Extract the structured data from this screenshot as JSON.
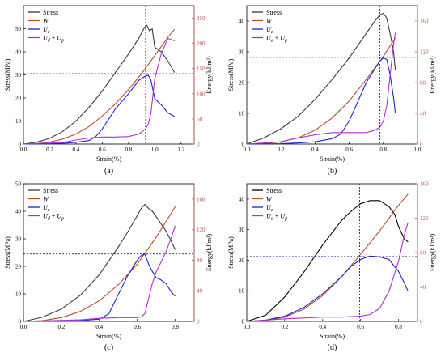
{
  "chart_data": [
    {
      "type": "line",
      "caption": "(a)",
      "xlabel": "Strain(%)",
      "ylabel": "Stress(MPa)",
      "ylabel_right": "Energy(kJ/m³)",
      "xlim": [
        0,
        1.3
      ],
      "ylim": [
        0,
        60
      ],
      "ylim_right": [
        0,
        275
      ],
      "xticks": [
        0.0,
        0.2,
        0.4,
        0.6,
        0.8,
        1.0,
        1.2
      ],
      "yticks": [
        0,
        10,
        20,
        30,
        40,
        50
      ],
      "yticks_right": [
        0,
        50,
        100,
        150,
        200,
        250
      ],
      "tick_decimals": 1,
      "crosshair": {
        "x": 0.93,
        "y": 30.5
      },
      "legend": {
        "position": "top-left"
      },
      "series": [
        {
          "name": "Stress",
          "axis": "left",
          "color": "#3a3a3a",
          "x": [
            0,
            0.1,
            0.2,
            0.3,
            0.4,
            0.5,
            0.6,
            0.7,
            0.8,
            0.88,
            0.92,
            0.94,
            0.96,
            0.98,
            1.0,
            1.05,
            1.1,
            1.15
          ],
          "y": [
            0,
            0.8,
            2.5,
            5.5,
            10,
            16,
            23,
            31,
            39,
            46,
            50.5,
            51.5,
            49,
            50,
            42,
            40,
            36,
            31
          ]
        },
        {
          "name": "W",
          "axis": "right",
          "color": "#b5502c",
          "x": [
            0,
            0.1,
            0.2,
            0.3,
            0.4,
            0.5,
            0.6,
            0.7,
            0.8,
            0.9,
            1.0,
            1.1,
            1.15
          ],
          "y": [
            0,
            0.6,
            4,
            10,
            20,
            35,
            56,
            80,
            108,
            140,
            176,
            212,
            228
          ]
        },
        {
          "name": "U_e",
          "axis": "right",
          "color": "#2020d0",
          "x": [
            0,
            0.2,
            0.3,
            0.4,
            0.5,
            0.55,
            0.6,
            0.7,
            0.8,
            0.88,
            0.92,
            0.95,
            0.97,
            1.0,
            1.05,
            1.1,
            1.15
          ],
          "y": [
            0,
            0.5,
            1.5,
            3.5,
            7,
            15,
            30,
            70,
            100,
            127,
            134,
            137,
            128,
            90,
            78,
            62,
            55
          ]
        },
        {
          "name": "U_d+U_p",
          "axis": "right",
          "color": "#b030d0",
          "x": [
            0,
            0.3,
            0.4,
            0.5,
            0.6,
            0.7,
            0.8,
            0.88,
            0.93,
            0.95,
            0.97,
            1.0,
            1.05,
            1.1,
            1.15
          ],
          "y": [
            0,
            3,
            8,
            12,
            14,
            14,
            15,
            20,
            30,
            40,
            60,
            130,
            180,
            210,
            205
          ]
        }
      ]
    },
    {
      "type": "line",
      "caption": "(b)",
      "xlabel": "Strain(%)",
      "ylabel": "Stress(MPa)",
      "ylabel_right": "Energy(kJ/m³)",
      "xlim": [
        0,
        1.0
      ],
      "ylim": [
        0,
        45
      ],
      "ylim_right": [
        0,
        180
      ],
      "xticks": [
        0.0,
        0.2,
        0.4,
        0.6,
        0.8,
        1.0
      ],
      "yticks": [
        0,
        10,
        20,
        30,
        40
      ],
      "yticks_right": [
        0,
        40,
        80,
        120,
        160
      ],
      "tick_decimals": 1,
      "crosshair": {
        "x": 0.78,
        "y": 28.2
      },
      "legend": {
        "position": "top-left"
      },
      "series": [
        {
          "name": "Stress",
          "axis": "left",
          "color": "#3a3a3a",
          "x": [
            0,
            0.1,
            0.2,
            0.3,
            0.4,
            0.5,
            0.6,
            0.7,
            0.75,
            0.78,
            0.8,
            0.82,
            0.84,
            0.86,
            0.87
          ],
          "y": [
            0,
            2,
            5,
            9,
            14.5,
            21,
            28,
            36,
            40,
            42,
            42.5,
            41,
            36,
            30,
            24
          ]
        },
        {
          "name": "W",
          "axis": "right",
          "color": "#b5502c",
          "x": [
            0,
            0.1,
            0.2,
            0.3,
            0.4,
            0.5,
            0.6,
            0.7,
            0.8,
            0.87
          ],
          "y": [
            0,
            0.5,
            3,
            8,
            18,
            34,
            56,
            84,
            114,
            138
          ]
        },
        {
          "name": "U_e",
          "axis": "right",
          "color": "#2020d0",
          "x": [
            0,
            0.2,
            0.3,
            0.4,
            0.5,
            0.55,
            0.6,
            0.65,
            0.7,
            0.75,
            0.78,
            0.8,
            0.82,
            0.84,
            0.86,
            0.87
          ],
          "y": [
            0,
            0.5,
            1.5,
            3,
            7,
            13,
            30,
            55,
            80,
            98,
            108,
            112,
            110,
            90,
            60,
            40
          ]
        },
        {
          "name": "U_d+U_p",
          "axis": "right",
          "color": "#b030d0",
          "x": [
            0,
            0.2,
            0.3,
            0.4,
            0.5,
            0.6,
            0.7,
            0.75,
            0.78,
            0.8,
            0.82,
            0.84,
            0.86,
            0.87
          ],
          "y": [
            0,
            3,
            8,
            12,
            15,
            15,
            15,
            18,
            22,
            30,
            50,
            90,
            130,
            145
          ]
        }
      ]
    },
    {
      "type": "line",
      "caption": "(c)",
      "xlabel": "Strain(%)",
      "ylabel": "Stress(MPa)",
      "ylabel_right": "Energy(kJ/m³)",
      "xlim": [
        0,
        0.9
      ],
      "ylim": [
        0,
        50
      ],
      "ylim_right": [
        0,
        180
      ],
      "xticks": [
        0.0,
        0.2,
        0.4,
        0.6,
        0.8
      ],
      "yticks": [
        0,
        10,
        20,
        30,
        40,
        50
      ],
      "yticks_right": [
        0,
        40,
        80,
        120,
        160
      ],
      "tick_decimals": 1,
      "crosshair": {
        "x": 0.625,
        "y": 24.5
      },
      "legend": {
        "position": "top-left"
      },
      "series": [
        {
          "name": "Stress",
          "axis": "left",
          "color": "#3a3a3a",
          "x": [
            0,
            0.1,
            0.2,
            0.3,
            0.4,
            0.5,
            0.55,
            0.6,
            0.62,
            0.64,
            0.66,
            0.68,
            0.7,
            0.72,
            0.75,
            0.78,
            0.8
          ],
          "y": [
            0,
            1.5,
            4.5,
            9.5,
            17,
            27,
            32.5,
            38.5,
            41,
            42.5,
            41,
            40,
            38,
            36,
            33,
            29,
            26
          ]
        },
        {
          "name": "W",
          "axis": "right",
          "color": "#b5502c",
          "x": [
            0,
            0.1,
            0.2,
            0.3,
            0.4,
            0.5,
            0.6,
            0.7,
            0.8
          ],
          "y": [
            0,
            1,
            5,
            13,
            27,
            48,
            75,
            110,
            150
          ]
        },
        {
          "name": "U_e",
          "axis": "right",
          "color": "#2020d0",
          "x": [
            0,
            0.2,
            0.3,
            0.4,
            0.45,
            0.5,
            0.55,
            0.6,
            0.62,
            0.64,
            0.66,
            0.68,
            0.7,
            0.72,
            0.75,
            0.78,
            0.8
          ],
          "y": [
            0,
            0.5,
            1,
            3,
            10,
            35,
            60,
            80,
            86,
            88,
            75,
            65,
            57,
            55,
            50,
            38,
            33
          ]
        },
        {
          "name": "U_d+U_p",
          "axis": "right",
          "color": "#b030d0",
          "x": [
            0,
            0.3,
            0.4,
            0.5,
            0.6,
            0.62,
            0.64,
            0.66,
            0.68,
            0.7,
            0.72,
            0.75,
            0.78,
            0.8
          ],
          "y": [
            0,
            2,
            4,
            5,
            5,
            6,
            10,
            30,
            50,
            65,
            75,
            90,
            110,
            125
          ]
        }
      ]
    },
    {
      "type": "line",
      "caption": "(d)",
      "xlabel": "Strain(%)",
      "ylabel": "Stress(MPa)",
      "ylabel_right": "Energy(kJ/m³)",
      "xlim": [
        0,
        0.9
      ],
      "ylim": [
        0,
        45
      ],
      "ylim_right": [
        0,
        160
      ],
      "xticks": [
        0.0,
        0.2,
        0.4,
        0.6,
        0.8
      ],
      "yticks": [
        0,
        10,
        20,
        30,
        40
      ],
      "yticks_right": [
        0,
        40,
        80,
        120,
        160
      ],
      "tick_decimals": 1,
      "crosshair": {
        "x": 0.595,
        "y": 21.2
      },
      "legend": {
        "position": "top-left"
      },
      "series": [
        {
          "name": "Stress",
          "axis": "left",
          "color": "#000000",
          "x": [
            0,
            0.1,
            0.15,
            0.2,
            0.3,
            0.4,
            0.5,
            0.55,
            0.6,
            0.65,
            0.7,
            0.75,
            0.78,
            0.8,
            0.83,
            0.85
          ],
          "y": [
            0,
            2,
            5,
            8,
            16,
            25,
            33,
            36,
            38.5,
            39.5,
            39.5,
            37.5,
            35,
            31,
            27,
            26
          ]
        },
        {
          "name": "W",
          "axis": "right",
          "color": "#b5502c",
          "x": [
            0,
            0.1,
            0.2,
            0.3,
            0.4,
            0.5,
            0.6,
            0.7,
            0.8,
            0.85
          ],
          "y": [
            0,
            1,
            5,
            14,
            30,
            52,
            78,
            105,
            135,
            148
          ]
        },
        {
          "name": "U_e",
          "axis": "right",
          "color": "#2020d0",
          "x": [
            0,
            0.1,
            0.2,
            0.3,
            0.4,
            0.5,
            0.55,
            0.6,
            0.65,
            0.7,
            0.75,
            0.8,
            0.83,
            0.85
          ],
          "y": [
            0,
            1.5,
            6,
            16,
            32,
            52,
            64,
            72,
            76,
            75,
            72,
            58,
            45,
            35
          ]
        },
        {
          "name": "U_d+U_p",
          "axis": "right",
          "color": "#b030d0",
          "x": [
            0,
            0.2,
            0.3,
            0.4,
            0.5,
            0.6,
            0.65,
            0.7,
            0.75,
            0.8,
            0.83,
            0.85
          ],
          "y": [
            0,
            3,
            4,
            5,
            5,
            6,
            8,
            15,
            35,
            70,
            100,
            115
          ]
        }
      ]
    }
  ]
}
